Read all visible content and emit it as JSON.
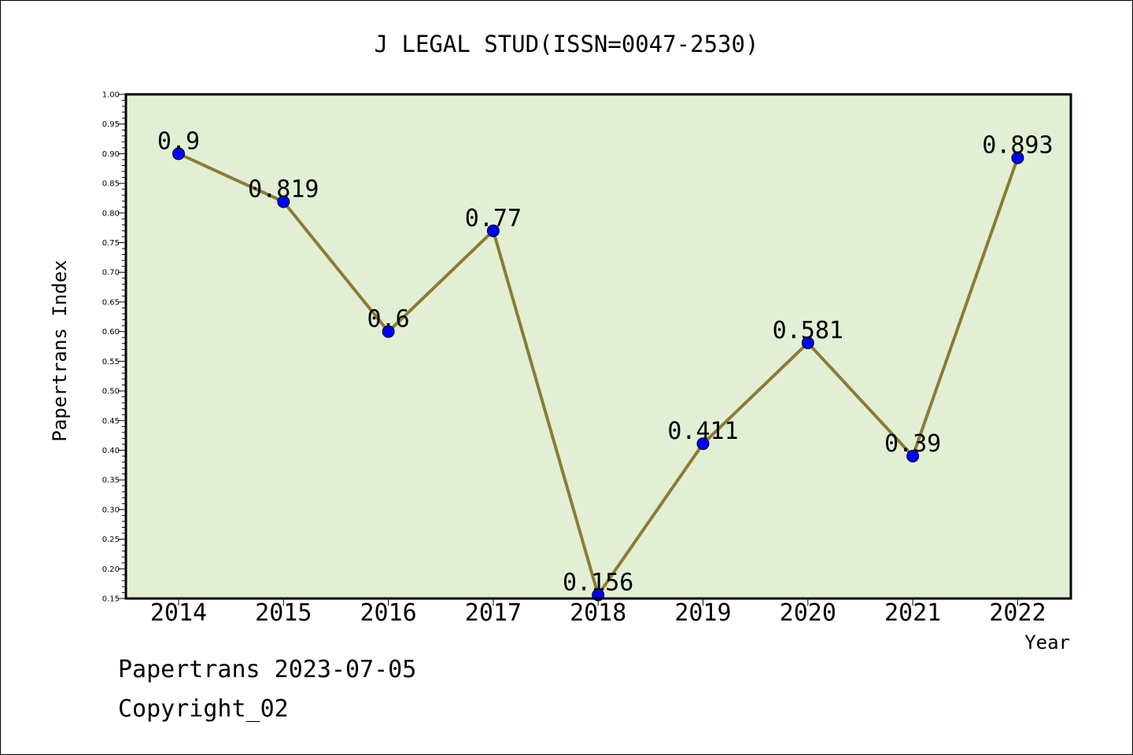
{
  "chart_data": {
    "type": "line",
    "title": "J LEGAL STUD(ISSN=0047-2530)",
    "xlabel": "Year",
    "ylabel": "Papertrans Index",
    "x": [
      "2014",
      "2015",
      "2016",
      "2017",
      "2018",
      "2019",
      "2020",
      "2021",
      "2022"
    ],
    "y": [
      0.9,
      0.819,
      0.6,
      0.77,
      0.156,
      0.411,
      0.581,
      0.39,
      0.893
    ],
    "data_labels": [
      "0.9",
      "0.819",
      "0.6",
      "0.77",
      "0.156",
      "0.411",
      "0.581",
      "0.39",
      "0.893"
    ],
    "ylim": [
      0.15,
      1.0
    ],
    "yticks": [
      "0.15",
      "0.20",
      "0.25",
      "0.30",
      "0.35",
      "0.40",
      "0.45",
      "0.50",
      "0.55",
      "0.60",
      "0.65",
      "0.70",
      "0.75",
      "0.80",
      "0.85",
      "0.90",
      "0.95",
      "1.00"
    ],
    "grid": false,
    "colors": {
      "plot_background": "#e2efd5",
      "line": "#8c7b36",
      "marker": "#0000ff"
    }
  },
  "footer": {
    "line1": "Papertrans 2023-07-05",
    "line2": "Copyright_02"
  }
}
